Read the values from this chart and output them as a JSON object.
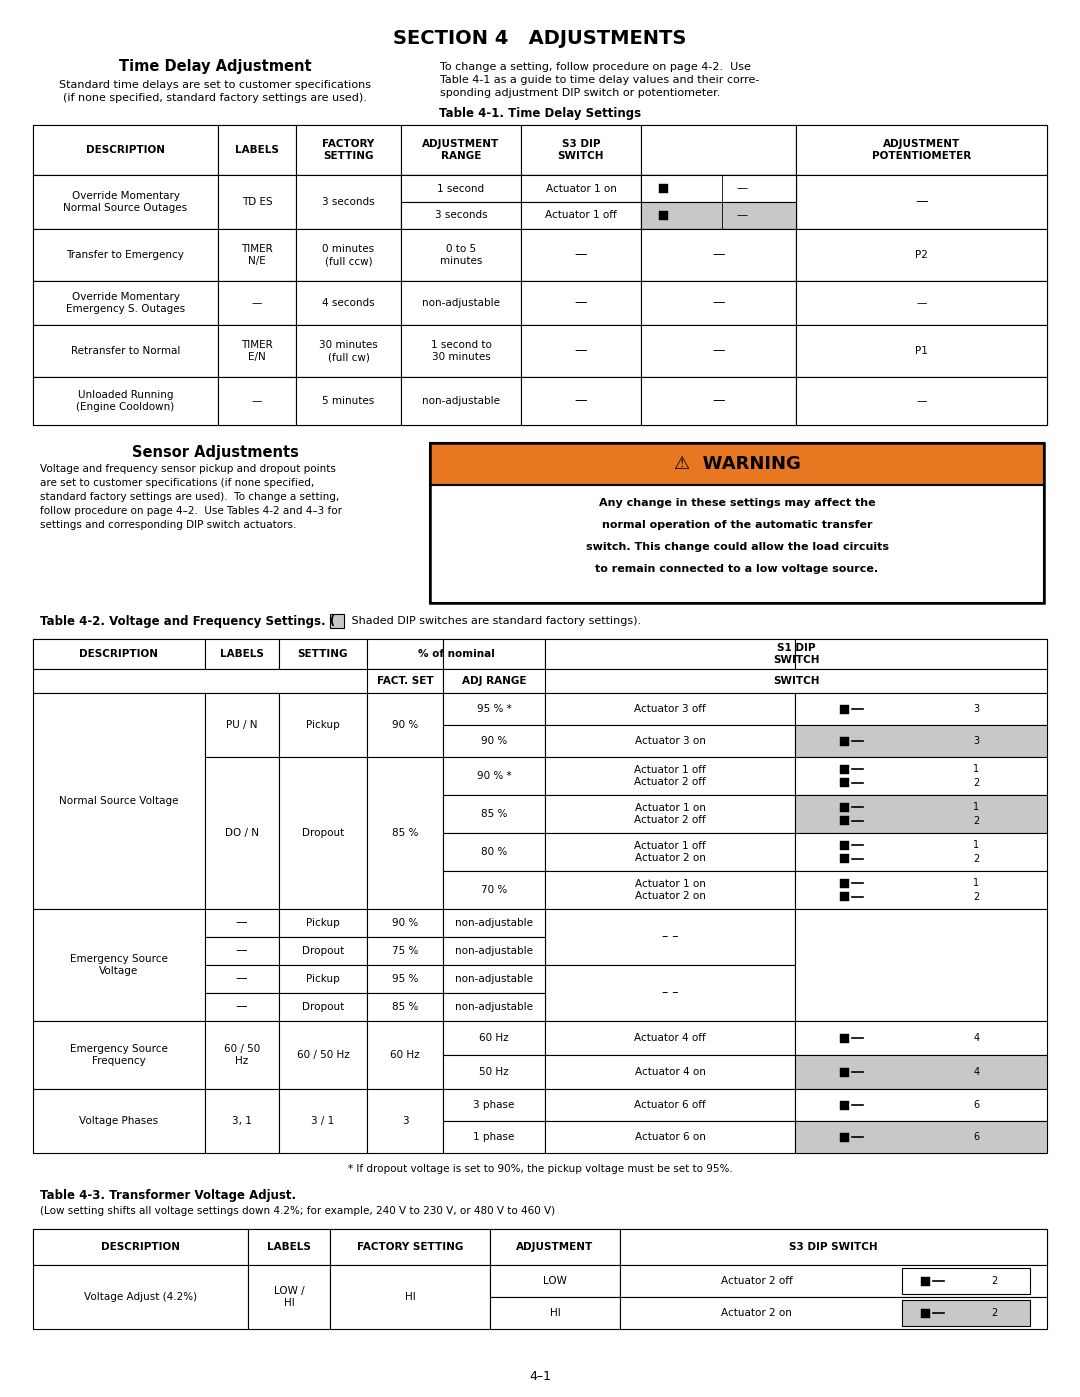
{
  "page_title": "SECTION 4   ADJUSTMENTS",
  "section1_title": "Time Delay Adjustment",
  "section1_left_text1": "Standard time delays are set to customer specifications",
  "section1_left_text2": "(if none specified, standard factory settings are used).",
  "section1_right_text1": "To change a setting, follow procedure on page 4-2.  Use",
  "section1_right_text2": "Table 4-1 as a guide to time delay values and their corre-",
  "section1_right_text3": "sponding adjustment DIP switch or potentiometer.",
  "table1_title": "Table 4-1. Time Delay Settings",
  "section2_title": "Sensor Adjustments",
  "section2_text1": "Voltage and frequency sensor pickup and dropout points",
  "section2_text2": "are set to customer specifications (if none specified,",
  "section2_text3": "standard factory settings are used).  To change a setting,",
  "section2_text4": "follow procedure on page 4–2.  Use Tables 4-2 and 4–3 for",
  "section2_text5": "settings and corresponding DIP switch actuators.",
  "warning_title": "⚠  WARNING",
  "warning_text1": "Any change in these settings may affect the",
  "warning_text2": "normal operation of the automatic transfer",
  "warning_text3": "switch. This change could allow the load circuits",
  "warning_text4": "to remain connected to a low voltage source.",
  "table2_title": "Table 4-2. Voltage and Frequency Settings. (",
  "table2_note": " Shaded DIP switches are standard factory settings).",
  "table3_title": "Table 4-3. Transformer Voltage Adjust.",
  "table3_note": "(Low setting shifts all voltage settings down 4.2%; for example, 240 V to 230 V, or 480 V to 460 V)",
  "page_number": "4–1",
  "bg_color": "#ffffff",
  "shaded_bg": "#c8c8c8",
  "warning_orange": "#e87722",
  "font_color": "#000000"
}
